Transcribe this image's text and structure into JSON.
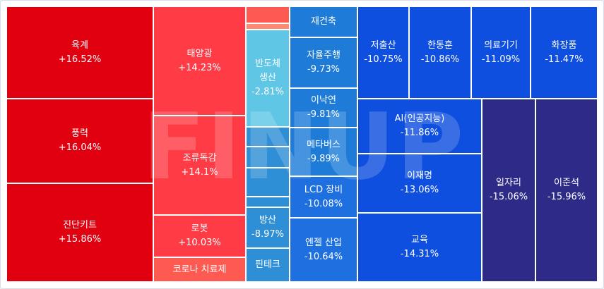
{
  "chart_data": {
    "type": "treemap",
    "items": [
      {
        "id": "yukgye",
        "label": "육계",
        "value": "+16.52%",
        "color": "#e0000f"
      },
      {
        "id": "pungryeok",
        "label": "풍력",
        "value": "+16.04%",
        "color": "#e0000f"
      },
      {
        "id": "jindan-kit",
        "label": "진단키트",
        "value": "+15.86%",
        "color": "#e0000f"
      },
      {
        "id": "taeyanggwang",
        "label": "태양광",
        "value": "+14.23%",
        "color": "#ff3b46"
      },
      {
        "id": "joryudokgam",
        "label": "조류독감",
        "value": "+14.1%",
        "color": "#ff3b46"
      },
      {
        "id": "robot",
        "label": "로봇",
        "value": "+10.03%",
        "color": "#ff3b46"
      },
      {
        "id": "corona-treatment",
        "label": "코로나 치료제",
        "value": "",
        "color": "#ff5a52"
      },
      {
        "id": "small-red-1",
        "label": "",
        "value": "",
        "color": "#ff5a52"
      },
      {
        "id": "small-red-2",
        "label": "",
        "value": "",
        "color": "#ff8a72"
      },
      {
        "id": "semiconductor-production",
        "label": "반도체\n생산",
        "value": "-2.81%",
        "color": "#5fc6e6"
      },
      {
        "id": "small-blue-1",
        "label": "",
        "value": "",
        "color": "#2f8fd6"
      },
      {
        "id": "small-blue-2",
        "label": "",
        "value": "",
        "color": "#2f8fd6"
      },
      {
        "id": "small-blue-3",
        "label": "",
        "value": "",
        "color": "#2f8fd6"
      },
      {
        "id": "small-blue-4",
        "label": "",
        "value": "",
        "color": "#2f8fd6"
      },
      {
        "id": "bangsan",
        "label": "방산",
        "value": "-8.97%",
        "color": "#2f8fd6"
      },
      {
        "id": "fintech",
        "label": "핀테크",
        "value": "",
        "color": "#2f8fd6"
      },
      {
        "id": "reconstruction",
        "label": "재건축",
        "value": "",
        "color": "#1e7cd8"
      },
      {
        "id": "autonomous-driving",
        "label": "자율주행",
        "value": "-9.73%",
        "color": "#1e7cd8"
      },
      {
        "id": "inaknyeon",
        "label": "이낙연",
        "value": "-9.81%",
        "color": "#1e7cd8"
      },
      {
        "id": "metaverse",
        "label": "메타버스",
        "value": "-9.89%",
        "color": "#1e7cd8"
      },
      {
        "id": "lcd-equipment",
        "label": "LCD 장비",
        "value": "-10.08%",
        "color": "#1e6fe0"
      },
      {
        "id": "enjel-industry",
        "label": "엔젤 산업",
        "value": "-10.64%",
        "color": "#1e6fe0"
      },
      {
        "id": "low-birth",
        "label": "저출산",
        "value": "-10.75%",
        "color": "#0f4fdf"
      },
      {
        "id": "han-donghun",
        "label": "한동훈",
        "value": "-10.86%",
        "color": "#0f4fdf"
      },
      {
        "id": "medical-devices",
        "label": "의료기기",
        "value": "-11.09%",
        "color": "#0f4fdf"
      },
      {
        "id": "cosmetics",
        "label": "화장품",
        "value": "-11.47%",
        "color": "#0f4fdf"
      },
      {
        "id": "ai",
        "label": "AI(인공지능)",
        "value": "-11.86%",
        "color": "#0f4fdf"
      },
      {
        "id": "lee-jaemyung",
        "label": "이재명",
        "value": "-13.06%",
        "color": "#0f4fdf"
      },
      {
        "id": "education",
        "label": "교육",
        "value": "-14.31%",
        "color": "#0f4fdf"
      },
      {
        "id": "jobs",
        "label": "일자리",
        "value": "-15.06%",
        "color": "#2e2a87"
      },
      {
        "id": "lee-junseok",
        "label": "이준석",
        "value": "-15.96%",
        "color": "#2e2a87"
      }
    ]
  },
  "watermark": "FINUP"
}
